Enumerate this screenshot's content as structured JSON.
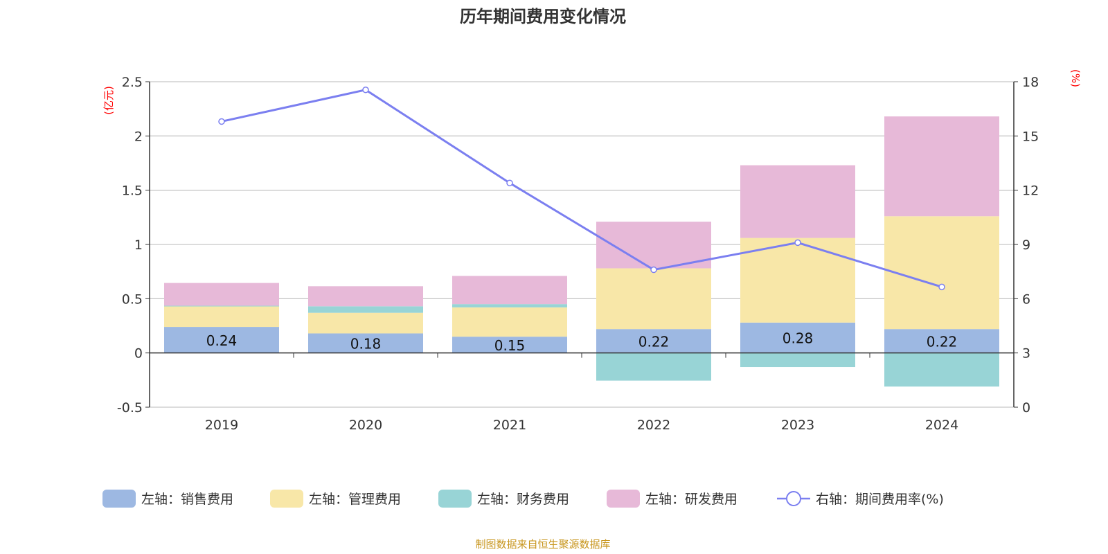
{
  "chart_data": {
    "type": "bar",
    "title": "历年期间费用变化情况",
    "categories": [
      "2019",
      "2020",
      "2021",
      "2022",
      "2023",
      "2024"
    ],
    "left_axis": {
      "unit": "(亿元)",
      "ylim": [
        -0.5,
        2.5
      ],
      "ticks": [
        "-0.5",
        "0",
        "0.5",
        "1",
        "1.5",
        "2",
        "2.5"
      ]
    },
    "right_axis": {
      "unit": "(%)",
      "ylim": [
        0,
        18
      ],
      "ticks": [
        "0",
        "3",
        "6",
        "9",
        "12",
        "15",
        "18"
      ]
    },
    "stacked": true,
    "grid": true,
    "legend_position": "bottom",
    "series": [
      {
        "name": "左轴：销售费用",
        "axis": "left",
        "type": "bar",
        "color": "#9db8e2",
        "values": [
          0.24,
          0.18,
          0.15,
          0.22,
          0.28,
          0.22
        ],
        "labels": [
          "0.24",
          "0.18",
          "0.15",
          "0.22",
          "0.28",
          "0.22"
        ]
      },
      {
        "name": "左轴：管理费用",
        "axis": "left",
        "type": "bar",
        "color": "#f8e7a8",
        "values": [
          0.19,
          0.19,
          0.27,
          0.56,
          0.78,
          1.04
        ]
      },
      {
        "name": "左轴：财务费用",
        "axis": "left",
        "type": "bar",
        "color": "#98d4d6",
        "values": [
          0.005,
          0.06,
          0.03,
          -0.255,
          -0.13,
          -0.31
        ]
      },
      {
        "name": "左轴：研发费用",
        "axis": "left",
        "type": "bar",
        "color": "#e7b9d8",
        "values": [
          0.21,
          0.185,
          0.26,
          0.43,
          0.67,
          0.92
        ]
      },
      {
        "name": "右轴：期间费用率(%)",
        "axis": "right",
        "type": "line",
        "color": "#7b7ff0",
        "values": [
          15.8,
          17.55,
          12.4,
          7.6,
          9.1,
          6.65
        ]
      }
    ]
  },
  "source": "制图数据来自恒生聚源数据库"
}
